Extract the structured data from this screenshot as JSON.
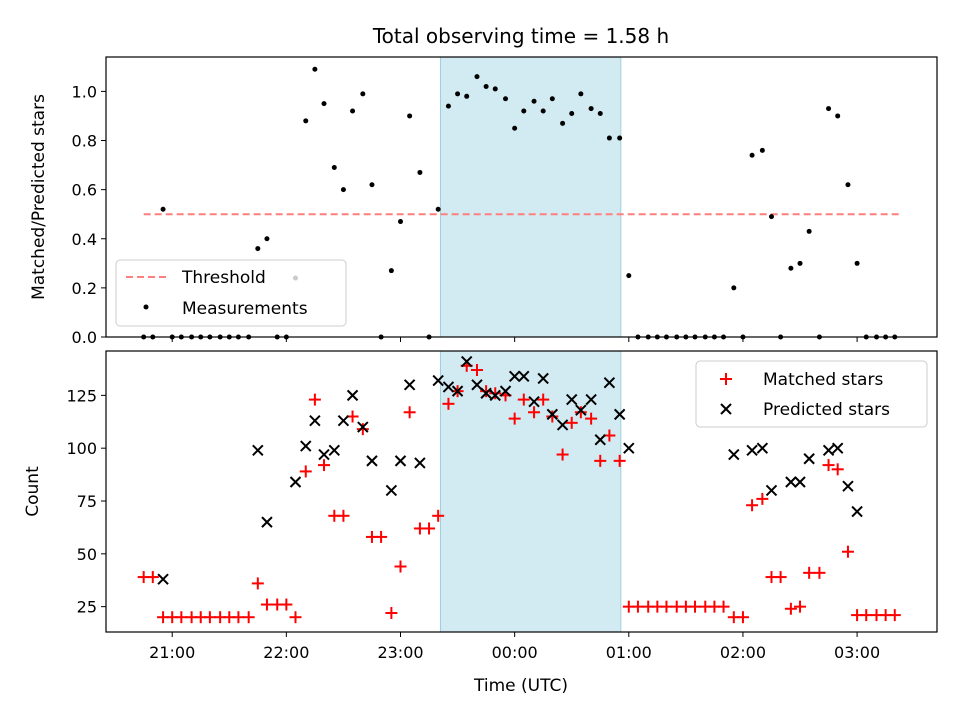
{
  "chart_data": {
    "type": "scatter",
    "title": "Total observing time = 1.58 h",
    "xlabel": "Time (UTC)",
    "x_unit": "hours relative to 00:00 UTC",
    "xlim": [
      -3.58,
      3.7
    ],
    "xticks": [
      {
        "value": -3,
        "label": "21:00"
      },
      {
        "value": -2,
        "label": "22:00"
      },
      {
        "value": -1,
        "label": "23:00"
      },
      {
        "value": 0,
        "label": "00:00"
      },
      {
        "value": 1,
        "label": "01:00"
      },
      {
        "value": 2,
        "label": "02:00"
      },
      {
        "value": 3,
        "label": "03:00"
      }
    ],
    "shaded_interval": {
      "start": -0.65,
      "end": 0.93,
      "color": "#add8e6"
    },
    "top": {
      "ylabel": "Matched/Predicted stars",
      "ylim": [
        0,
        1.14
      ],
      "yticks": [
        "0.0",
        "0.2",
        "0.4",
        "0.6",
        "0.8",
        "1.0"
      ],
      "threshold": {
        "name": "Threshold",
        "value": 0.5,
        "x_range": [
          -3.25,
          3.37
        ],
        "color": "#ff7f7f"
      },
      "measurements_name": "Measurements",
      "measurements": [
        [
          -3.25,
          0.0
        ],
        [
          -3.17,
          0.0
        ],
        [
          -3.08,
          0.52
        ],
        [
          -3.0,
          0.0
        ],
        [
          -2.92,
          0.0
        ],
        [
          -2.83,
          0.0
        ],
        [
          -2.75,
          0.0
        ],
        [
          -2.67,
          0.0
        ],
        [
          -2.58,
          0.0
        ],
        [
          -2.5,
          0.0
        ],
        [
          -2.42,
          0.0
        ],
        [
          -2.33,
          0.0
        ],
        [
          -2.25,
          0.36
        ],
        [
          -2.17,
          0.4
        ],
        [
          -2.08,
          0.0
        ],
        [
          -2.0,
          0.0
        ],
        [
          -1.92,
          0.24
        ],
        [
          -1.83,
          0.88
        ],
        [
          -1.75,
          1.09
        ],
        [
          -1.67,
          0.95
        ],
        [
          -1.58,
          0.69
        ],
        [
          -1.5,
          0.6
        ],
        [
          -1.42,
          0.92
        ],
        [
          -1.33,
          0.99
        ],
        [
          -1.25,
          0.62
        ],
        [
          -1.17,
          0.0
        ],
        [
          -1.08,
          0.27
        ],
        [
          -1.0,
          0.47
        ],
        [
          -0.92,
          0.9
        ],
        [
          -0.83,
          0.67
        ],
        [
          -0.75,
          0.0
        ],
        [
          -0.67,
          0.52
        ],
        [
          -0.58,
          0.94
        ],
        [
          -0.5,
          0.99
        ],
        [
          -0.42,
          0.98
        ],
        [
          -0.33,
          1.06
        ],
        [
          -0.25,
          1.02
        ],
        [
          -0.17,
          1.01
        ],
        [
          -0.08,
          0.97
        ],
        [
          0.0,
          0.85
        ],
        [
          0.08,
          0.92
        ],
        [
          0.17,
          0.96
        ],
        [
          0.25,
          0.92
        ],
        [
          0.33,
          0.97
        ],
        [
          0.42,
          0.87
        ],
        [
          0.5,
          0.91
        ],
        [
          0.58,
          0.99
        ],
        [
          0.67,
          0.93
        ],
        [
          0.75,
          0.91
        ],
        [
          0.83,
          0.81
        ],
        [
          0.92,
          0.81
        ],
        [
          1.0,
          0.25
        ],
        [
          1.08,
          0.0
        ],
        [
          1.17,
          0.0
        ],
        [
          1.25,
          0.0
        ],
        [
          1.33,
          0.0
        ],
        [
          1.42,
          0.0
        ],
        [
          1.5,
          0.0
        ],
        [
          1.58,
          0.0
        ],
        [
          1.67,
          0.0
        ],
        [
          1.75,
          0.0
        ],
        [
          1.83,
          0.0
        ],
        [
          1.92,
          0.2
        ],
        [
          2.0,
          0.0
        ],
        [
          2.08,
          0.74
        ],
        [
          2.17,
          0.76
        ],
        [
          2.25,
          0.49
        ],
        [
          2.33,
          0.0
        ],
        [
          2.42,
          0.28
        ],
        [
          2.5,
          0.3
        ],
        [
          2.58,
          0.43
        ],
        [
          2.67,
          0.0
        ],
        [
          2.75,
          0.93
        ],
        [
          2.83,
          0.9
        ],
        [
          2.92,
          0.62
        ],
        [
          3.0,
          0.3
        ],
        [
          3.08,
          0.0
        ],
        [
          3.17,
          0.0
        ],
        [
          3.25,
          0.0
        ],
        [
          3.33,
          0.0
        ]
      ],
      "legend_position": "lower-left"
    },
    "bottom": {
      "ylabel": "Count",
      "ylim": [
        13,
        146
      ],
      "yticks": [
        "25",
        "50",
        "75",
        "100",
        "125"
      ],
      "legend_position": "upper-right",
      "series": [
        {
          "name": "Matched stars",
          "marker": "plus",
          "color": "#ff0000",
          "points": [
            [
              -3.25,
              39
            ],
            [
              -3.17,
              39
            ],
            [
              -3.08,
              20
            ],
            [
              -3.0,
              20
            ],
            [
              -2.92,
              20
            ],
            [
              -2.83,
              20
            ],
            [
              -2.75,
              20
            ],
            [
              -2.67,
              20
            ],
            [
              -2.58,
              20
            ],
            [
              -2.5,
              20
            ],
            [
              -2.42,
              20
            ],
            [
              -2.33,
              20
            ],
            [
              -2.25,
              36
            ],
            [
              -2.17,
              26
            ],
            [
              -2.08,
              26
            ],
            [
              -2.0,
              26
            ],
            [
              -1.92,
              20
            ],
            [
              -1.83,
              89
            ],
            [
              -1.75,
              123
            ],
            [
              -1.67,
              92
            ],
            [
              -1.58,
              68
            ],
            [
              -1.5,
              68
            ],
            [
              -1.42,
              115
            ],
            [
              -1.33,
              109
            ],
            [
              -1.25,
              58
            ],
            [
              -1.17,
              58
            ],
            [
              -1.08,
              22
            ],
            [
              -1.0,
              44
            ],
            [
              -0.92,
              117
            ],
            [
              -0.83,
              62
            ],
            [
              -0.75,
              62
            ],
            [
              -0.67,
              68
            ],
            [
              -0.58,
              121
            ],
            [
              -0.5,
              127
            ],
            [
              -0.42,
              139
            ],
            [
              -0.33,
              137
            ],
            [
              -0.25,
              127
            ],
            [
              -0.17,
              126
            ],
            [
              -0.08,
              125
            ],
            [
              0.0,
              114
            ],
            [
              0.08,
              123
            ],
            [
              0.17,
              117
            ],
            [
              0.25,
              123
            ],
            [
              0.33,
              115
            ],
            [
              0.42,
              97
            ],
            [
              0.5,
              112
            ],
            [
              0.58,
              117
            ],
            [
              0.67,
              114
            ],
            [
              0.75,
              94
            ],
            [
              0.83,
              106
            ],
            [
              0.92,
              94
            ],
            [
              1.0,
              25
            ],
            [
              1.08,
              25
            ],
            [
              1.17,
              25
            ],
            [
              1.25,
              25
            ],
            [
              1.33,
              25
            ],
            [
              1.42,
              25
            ],
            [
              1.5,
              25
            ],
            [
              1.58,
              25
            ],
            [
              1.67,
              25
            ],
            [
              1.75,
              25
            ],
            [
              1.83,
              25
            ],
            [
              1.92,
              20
            ],
            [
              2.0,
              20
            ],
            [
              2.08,
              73
            ],
            [
              2.17,
              76
            ],
            [
              2.25,
              39
            ],
            [
              2.33,
              39
            ],
            [
              2.42,
              24
            ],
            [
              2.5,
              25
            ],
            [
              2.58,
              41
            ],
            [
              2.67,
              41
            ],
            [
              2.75,
              92
            ],
            [
              2.83,
              90
            ],
            [
              2.92,
              51
            ],
            [
              3.0,
              21
            ],
            [
              3.08,
              21
            ],
            [
              3.17,
              21
            ],
            [
              3.25,
              21
            ],
            [
              3.33,
              21
            ]
          ]
        },
        {
          "name": "Predicted stars",
          "marker": "x",
          "color": "#000000",
          "points": [
            [
              -3.08,
              38
            ],
            [
              -2.25,
              99
            ],
            [
              -2.17,
              65
            ],
            [
              -1.92,
              84
            ],
            [
              -1.83,
              101
            ],
            [
              -1.75,
              113
            ],
            [
              -1.67,
              97
            ],
            [
              -1.58,
              99
            ],
            [
              -1.5,
              113
            ],
            [
              -1.42,
              125
            ],
            [
              -1.33,
              110
            ],
            [
              -1.25,
              94
            ],
            [
              -1.08,
              80
            ],
            [
              -1.0,
              94
            ],
            [
              -0.92,
              130
            ],
            [
              -0.83,
              93
            ],
            [
              -0.67,
              132
            ],
            [
              -0.58,
              129
            ],
            [
              -0.5,
              127
            ],
            [
              -0.42,
              141
            ],
            [
              -0.33,
              130
            ],
            [
              -0.25,
              126
            ],
            [
              -0.17,
              125
            ],
            [
              -0.08,
              127
            ],
            [
              0.0,
              134
            ],
            [
              0.08,
              134
            ],
            [
              0.17,
              122
            ],
            [
              0.25,
              133
            ],
            [
              0.33,
              116
            ],
            [
              0.42,
              111
            ],
            [
              0.5,
              123
            ],
            [
              0.58,
              118
            ],
            [
              0.67,
              123
            ],
            [
              0.75,
              104
            ],
            [
              0.83,
              131
            ],
            [
              0.92,
              116
            ],
            [
              1.0,
              100
            ],
            [
              1.92,
              97
            ],
            [
              2.08,
              99
            ],
            [
              2.17,
              100
            ],
            [
              2.25,
              80
            ],
            [
              2.42,
              84
            ],
            [
              2.5,
              84
            ],
            [
              2.58,
              95
            ],
            [
              2.75,
              99
            ],
            [
              2.83,
              100
            ],
            [
              2.92,
              82
            ],
            [
              3.0,
              70
            ]
          ]
        }
      ]
    }
  }
}
